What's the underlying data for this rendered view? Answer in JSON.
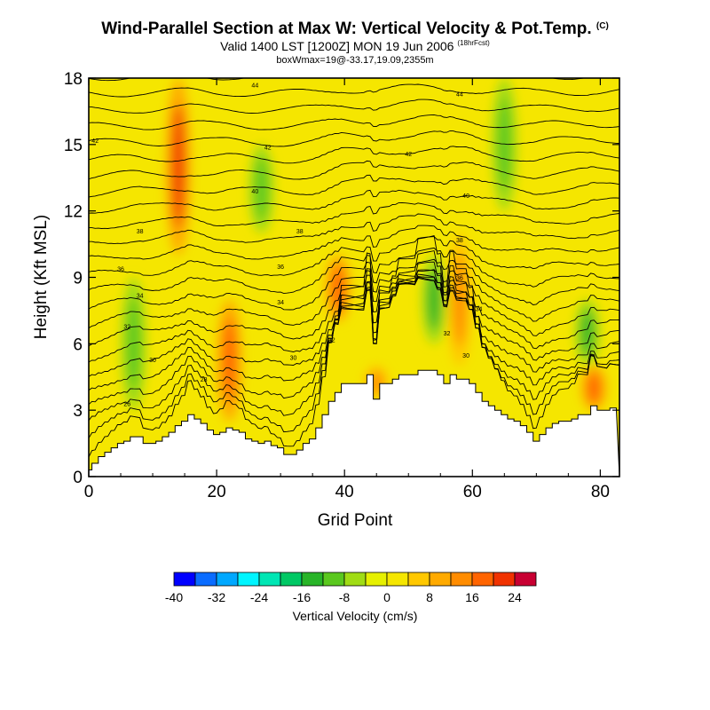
{
  "chart_data": {
    "type": "heatmap",
    "title": "Wind-Parallel Section at Max W: Vertical Velocity & Pot.Temp.",
    "title_mark": "(C)",
    "subtitle": "Valid 1400 LST [1200Z] MON 19 Jun 2006",
    "subtitle_note": "(18hrFcst)",
    "subtitle2": "boxWmax=19@-33.17,19.09,2355m",
    "xlabel": "Grid Point",
    "ylabel": "Height (Kft MSL)",
    "xlim": [
      0,
      83
    ],
    "ylim": [
      0,
      18
    ],
    "x_ticks": [
      0,
      20,
      40,
      60,
      80
    ],
    "y_ticks": [
      0,
      3,
      6,
      9,
      12,
      15,
      18
    ],
    "colorbar": {
      "label": "Vertical Velocity (cm/s)",
      "tick_labels": [
        "-40",
        "-32",
        "-24",
        "-16",
        "-8",
        "0",
        "8",
        "16",
        "24"
      ],
      "bins": [
        -40,
        -36,
        -32,
        -28,
        -24,
        -20,
        -16,
        -12,
        -8,
        -4,
        0,
        4,
        8,
        12,
        16,
        20,
        24,
        28
      ],
      "colors": [
        "#0000ff",
        "#0a6cff",
        "#00a8ff",
        "#00f5ff",
        "#00e6b4",
        "#00c864",
        "#28b428",
        "#5ac81e",
        "#a0dc14",
        "#e6f000",
        "#f5e600",
        "#ffc800",
        "#ffaa00",
        "#ff8c00",
        "#ff6400",
        "#f03200",
        "#c80032"
      ]
    },
    "terrain_kft": [
      0.3,
      0.6,
      0.9,
      1.1,
      1.3,
      1.5,
      1.6,
      1.8,
      1.8,
      1.5,
      1.5,
      1.6,
      1.8,
      2.0,
      2.3,
      2.5,
      2.8,
      2.6,
      2.4,
      2.1,
      1.9,
      2.0,
      2.2,
      2.1,
      2.0,
      1.7,
      1.6,
      1.5,
      1.6,
      1.4,
      1.3,
      1.0,
      1.0,
      1.2,
      1.5,
      1.7,
      2.2,
      2.8,
      3.4,
      3.8,
      4.2,
      4.2,
      4.2,
      4.2,
      4.6,
      3.5,
      4.2,
      4.2,
      4.4,
      4.6,
      4.6,
      4.6,
      4.8,
      4.8,
      4.8,
      4.6,
      4.2,
      4.6,
      4.4,
      4.4,
      4.2,
      3.8,
      3.4,
      3.2,
      3.0,
      2.8,
      2.6,
      2.5,
      2.3,
      2.0,
      1.6,
      1.9,
      2.2,
      2.4,
      2.5,
      2.5,
      2.6,
      2.8,
      2.8,
      3.2,
      3.0,
      3.0,
      3.1
    ],
    "updraft_cores": [
      {
        "x": 14,
        "z_top": 18,
        "z_bottom": 10,
        "w": 20
      },
      {
        "x": 22,
        "z_top": 8,
        "z_bottom": 2.5,
        "w": 16
      },
      {
        "x": 39,
        "z_top": 10,
        "z_bottom": 7,
        "w": 18
      },
      {
        "x": 45,
        "z_top": 5,
        "z_bottom": 3.5,
        "w": 14
      },
      {
        "x": 58,
        "z_top": 11,
        "z_bottom": 5,
        "w": 14
      },
      {
        "x": 79,
        "z_top": 5,
        "z_bottom": 3,
        "w": 16
      }
    ],
    "downdraft_cores": [
      {
        "x": 7,
        "z_top": 9,
        "z_bottom": 3,
        "w": -10
      },
      {
        "x": 27,
        "z_top": 15,
        "z_bottom": 11,
        "w": -12
      },
      {
        "x": 54,
        "z_top": 10,
        "z_bottom": 6,
        "w": -14
      },
      {
        "x": 65,
        "z_top": 18,
        "z_bottom": 12,
        "w": -10
      },
      {
        "x": 78,
        "z_top": 8,
        "z_bottom": 5,
        "w": -14
      }
    ],
    "isotherm_labels": [
      {
        "x": 26,
        "z": 17.7,
        "text": "44"
      },
      {
        "x": 58,
        "z": 17.3,
        "text": "44"
      },
      {
        "x": 1,
        "z": 15.2,
        "text": "42"
      },
      {
        "x": 28,
        "z": 14.9,
        "text": "42"
      },
      {
        "x": 50,
        "z": 14.6,
        "text": "42"
      },
      {
        "x": 26,
        "z": 12.9,
        "text": "40"
      },
      {
        "x": 59,
        "z": 12.7,
        "text": "40"
      },
      {
        "x": 8,
        "z": 11.1,
        "text": "38"
      },
      {
        "x": 33,
        "z": 11.1,
        "text": "38"
      },
      {
        "x": 58,
        "z": 10.7,
        "text": "38"
      },
      {
        "x": 5,
        "z": 9.4,
        "text": "36"
      },
      {
        "x": 30,
        "z": 9.5,
        "text": "36"
      },
      {
        "x": 58,
        "z": 9.0,
        "text": "36"
      },
      {
        "x": 8,
        "z": 8.2,
        "text": "34"
      },
      {
        "x": 30,
        "z": 7.9,
        "text": "34"
      },
      {
        "x": 61,
        "z": 7.6,
        "text": "34"
      },
      {
        "x": 6,
        "z": 6.8,
        "text": "32"
      },
      {
        "x": 38,
        "z": 6.2,
        "text": "32"
      },
      {
        "x": 56,
        "z": 6.5,
        "text": "32"
      },
      {
        "x": 10,
        "z": 5.3,
        "text": "30"
      },
      {
        "x": 32,
        "z": 5.4,
        "text": "30"
      },
      {
        "x": 59,
        "z": 5.5,
        "text": "30"
      },
      {
        "x": 18,
        "z": 4.4,
        "text": "28"
      },
      {
        "x": 6,
        "z": 3.3,
        "text": "26"
      }
    ]
  }
}
